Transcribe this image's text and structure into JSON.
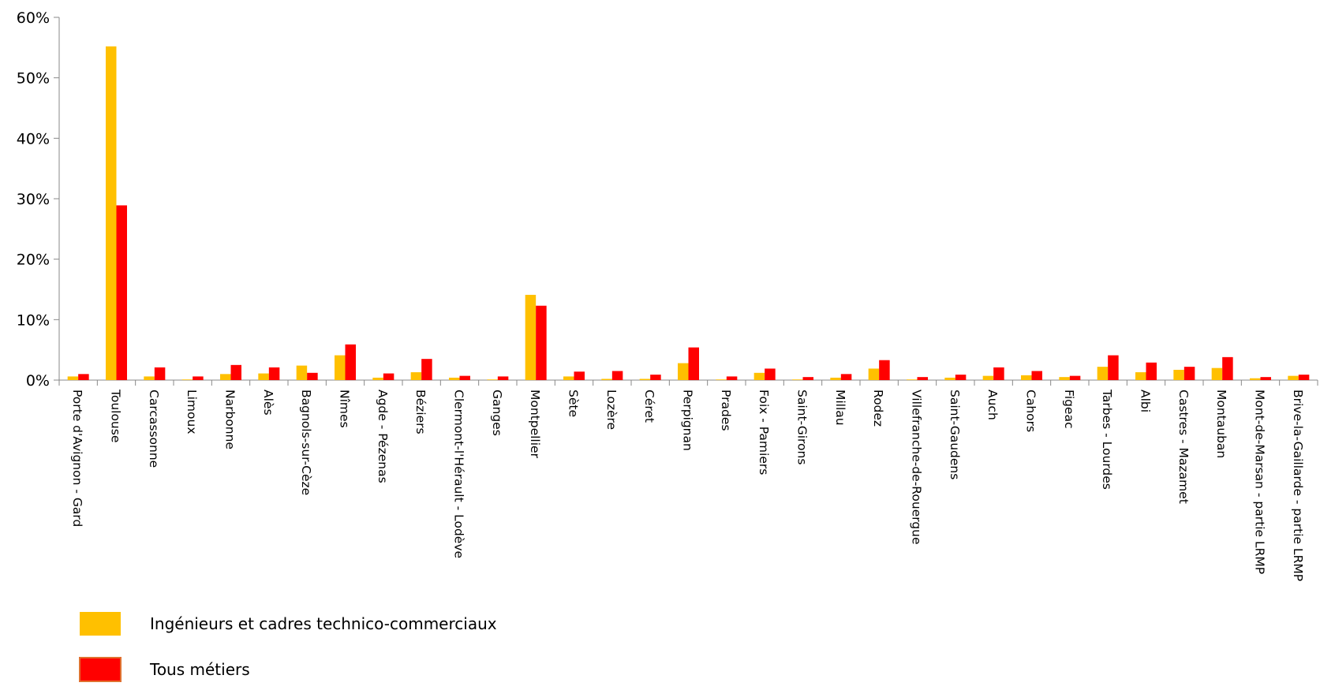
{
  "chart_data": {
    "type": "bar",
    "title": "",
    "xlabel": "",
    "ylabel": "",
    "ylim": [
      0,
      60
    ],
    "yticks": [
      "0%",
      "10%",
      "20%",
      "30%",
      "40%",
      "50%",
      "60%"
    ],
    "grid": false,
    "legend_position": "bottom-left",
    "categories": [
      "Porte d'Avignon - Gard",
      "Toulouse",
      "Carcassonne",
      "Limoux",
      "Narbonne",
      "Alès",
      "Bagnols-sur-Cèze",
      "Nîmes",
      "Agde - Pézenas",
      "Béziers",
      "Clermont-l'Hérault - Lodève",
      "Ganges",
      "Montpellier",
      "Sète",
      "Lozère",
      "Céret",
      "Perpignan",
      "Prades",
      "Foix - Pamiers",
      "Saint-Girons",
      "Millau",
      "Rodez",
      "Villefranche-de-Rouergue",
      "Saint-Gaudens",
      "Auch",
      "Cahors",
      "Figeac",
      "Tarbes - Lourdes",
      "Albi",
      "Castres - Mazamet",
      "Montauban",
      "Mont-de-Marsan - partie LRMP",
      "Brive-la-Gaillarde - partie LRMP"
    ],
    "series": [
      {
        "name": "Ingénieurs et cadres technico-commerciaux",
        "color": "#FFC000",
        "values": [
          0.6,
          55.2,
          0.6,
          0.1,
          1.0,
          1.1,
          2.4,
          4.1,
          0.4,
          1.3,
          0.4,
          0.1,
          14.1,
          0.6,
          0.2,
          0.2,
          2.8,
          0.1,
          1.2,
          0.1,
          0.4,
          1.9,
          0.1,
          0.4,
          0.7,
          0.8,
          0.5,
          2.2,
          1.3,
          1.7,
          2.0,
          0.3,
          0.7
        ]
      },
      {
        "name": "Tous métiers",
        "color": "#FF0000",
        "values": [
          1.0,
          28.9,
          2.1,
          0.6,
          2.5,
          2.1,
          1.2,
          5.9,
          1.1,
          3.5,
          0.7,
          0.6,
          12.3,
          1.4,
          1.5,
          0.9,
          5.4,
          0.6,
          1.9,
          0.5,
          1.0,
          3.3,
          0.5,
          0.9,
          2.1,
          1.5,
          0.7,
          4.1,
          2.9,
          2.2,
          3.8,
          0.5,
          0.9
        ]
      }
    ]
  }
}
